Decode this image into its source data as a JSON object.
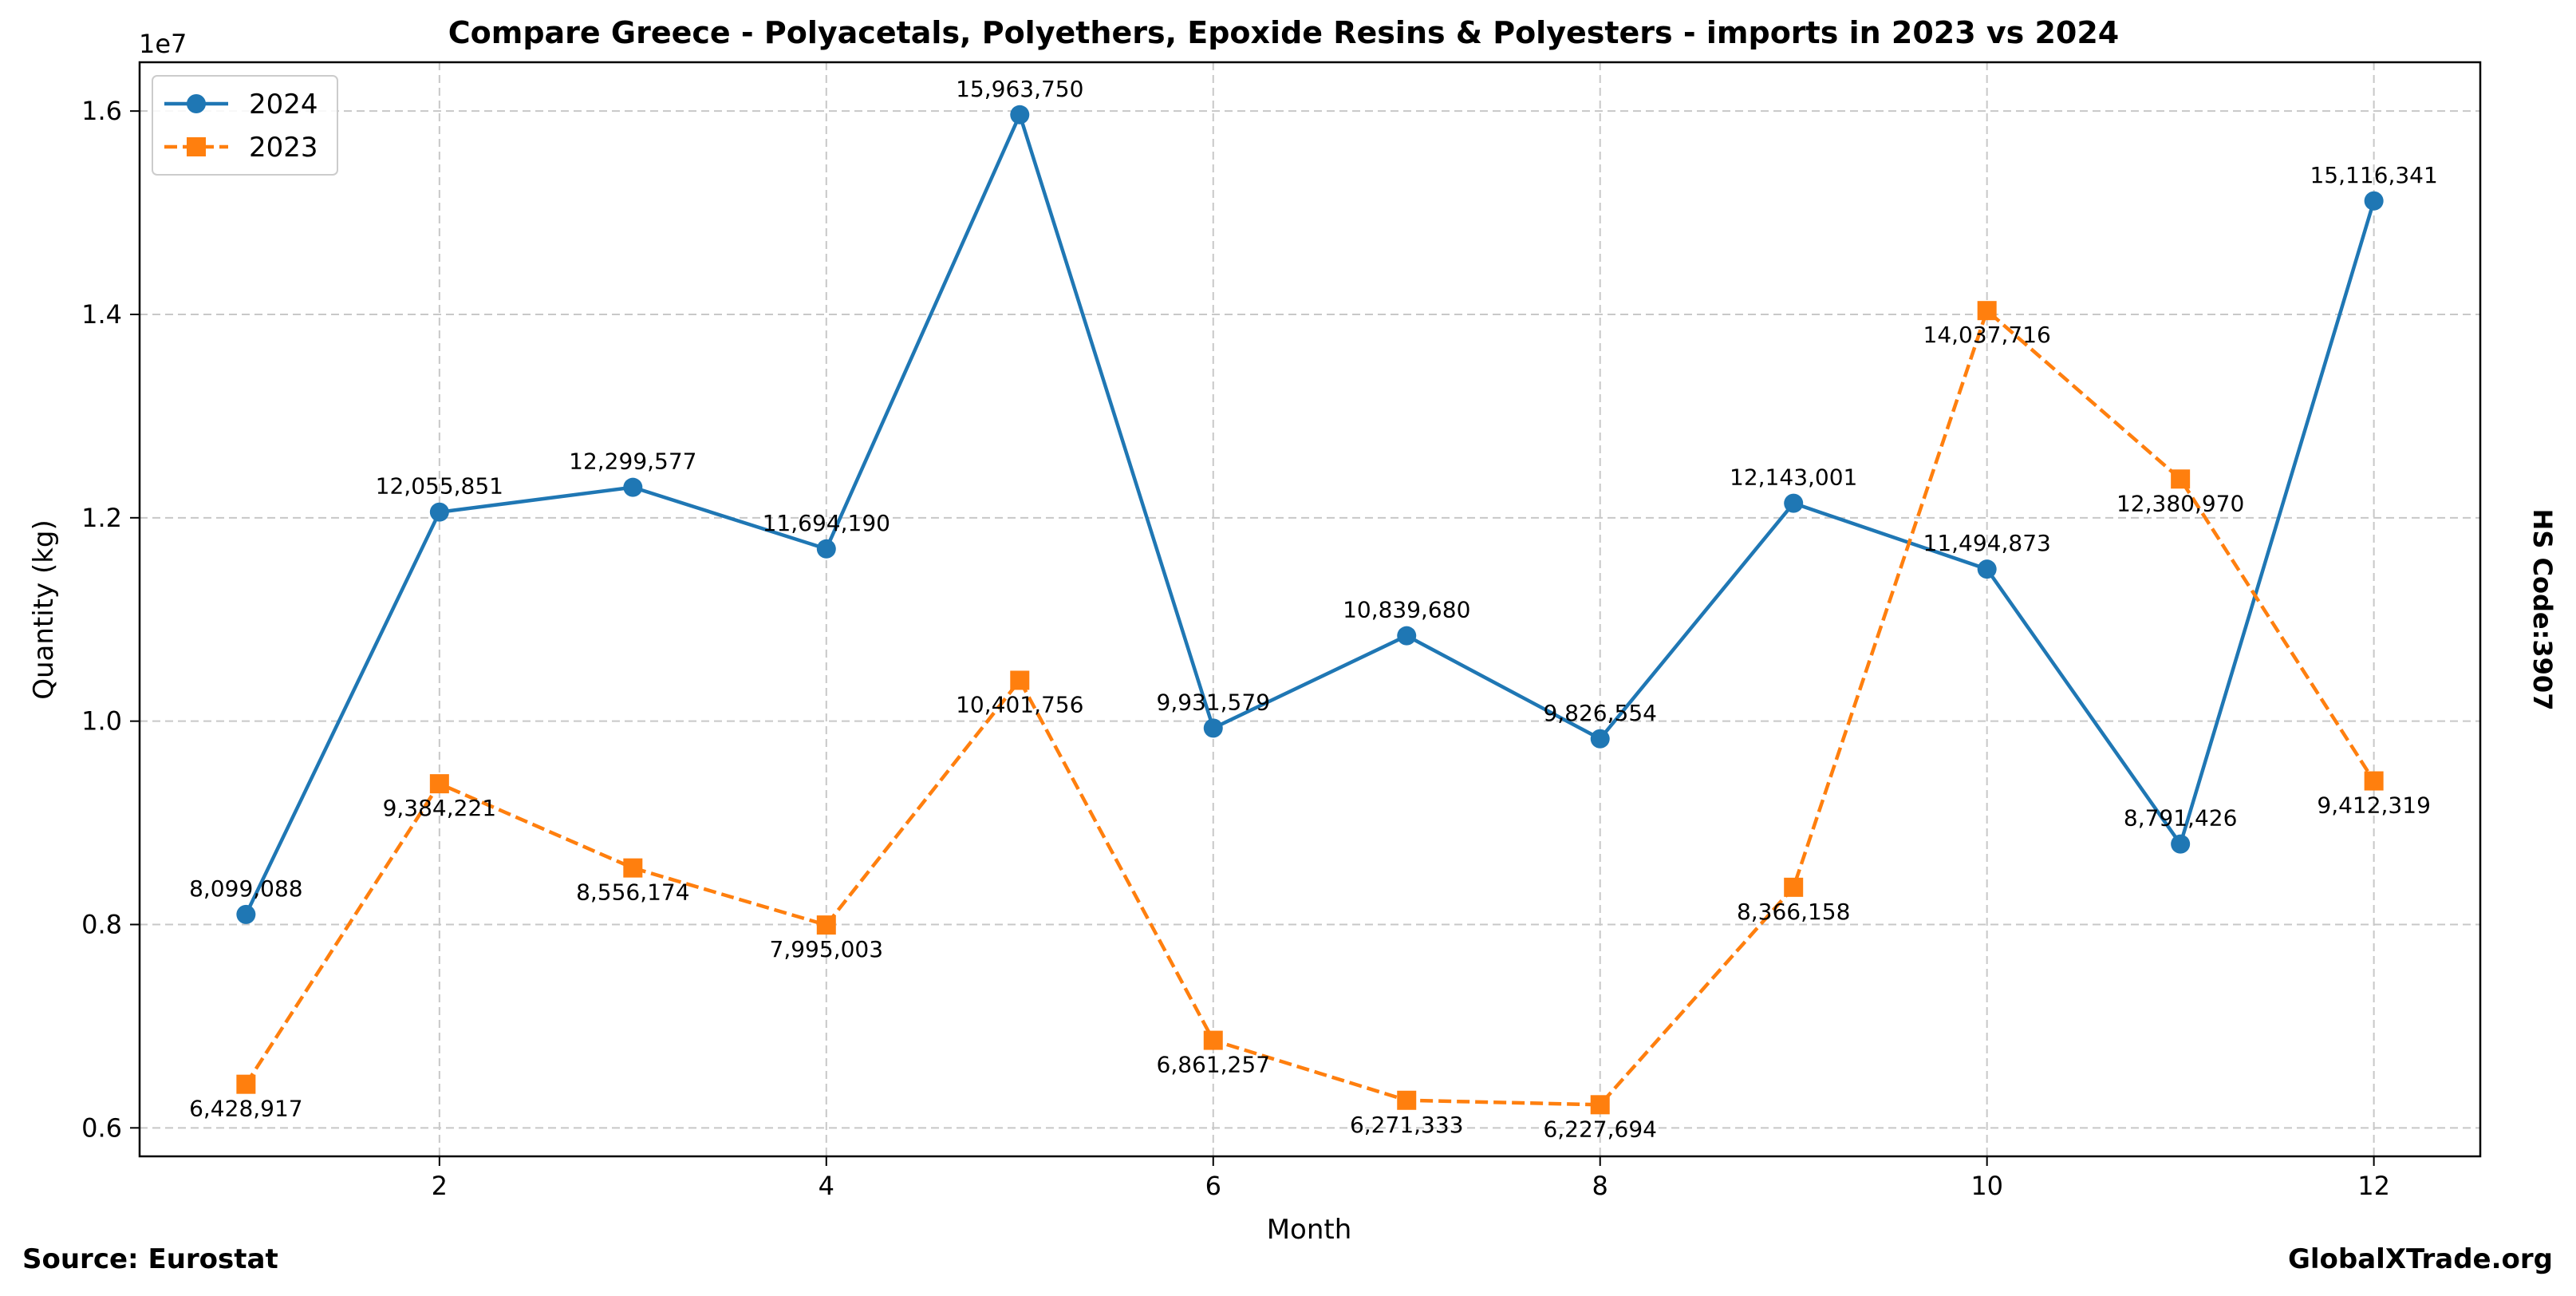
{
  "chart_data": {
    "type": "line",
    "title": "Compare Greece - Polyacetals, Polyethers, Epoxide Resins & Polyesters - imports in 2023 vs 2024",
    "xlabel": "Month",
    "ylabel": "Quantity (kg)",
    "scale_label": "1e7",
    "x": [
      1,
      2,
      3,
      4,
      5,
      6,
      7,
      8,
      9,
      10,
      11,
      12
    ],
    "xlim": [
      0.45,
      12.55
    ],
    "ylim": [
      5720000,
      16480000
    ],
    "x_ticks": [
      2,
      4,
      6,
      8,
      10,
      12
    ],
    "x_tick_labels": [
      "2",
      "4",
      "6",
      "8",
      "10",
      "12"
    ],
    "y_ticks": [
      6000000,
      8000000,
      10000000,
      12000000,
      14000000,
      16000000
    ],
    "y_tick_labels": [
      "0.6",
      "0.8",
      "1.0",
      "1.2",
      "1.4",
      "1.6"
    ],
    "grid": true,
    "legend_position": "top-left",
    "series": [
      {
        "name": "2024",
        "color": "#1f77b4",
        "marker": "circle",
        "line_style": "solid",
        "label_side": "above",
        "values": [
          8099088,
          12055851,
          12299577,
          11694190,
          15963750,
          9931579,
          10839680,
          9826554,
          12143001,
          11494873,
          8791426,
          15116341
        ],
        "labels": [
          "8,099,088",
          "12,055,851",
          "12,299,577",
          "11,694,190",
          "15,963,750",
          "9,931,579",
          "10,839,680",
          "9,826,554",
          "12,143,001",
          "11,494,873",
          "8,791,426",
          "15,116,341"
        ]
      },
      {
        "name": "2023",
        "color": "#ff7f0e",
        "marker": "square",
        "line_style": "dashed",
        "label_side": "below",
        "values": [
          6428917,
          9384221,
          8556174,
          7995003,
          10401756,
          6861257,
          6271333,
          6227694,
          8366158,
          14037716,
          12380970,
          9412319
        ],
        "labels": [
          "6,428,917",
          "9,384,221",
          "8,556,174",
          "7,995,003",
          "10,401,756",
          "6,861,257",
          "6,271,333",
          "6,227,694",
          "8,366,158",
          "14,037,716",
          "12,380,970",
          "9,412,319"
        ]
      }
    ]
  },
  "side_label": "HS Code:3907",
  "footer": {
    "source": "Source: Eurostat",
    "brand": "GlobalXTrade.org"
  }
}
